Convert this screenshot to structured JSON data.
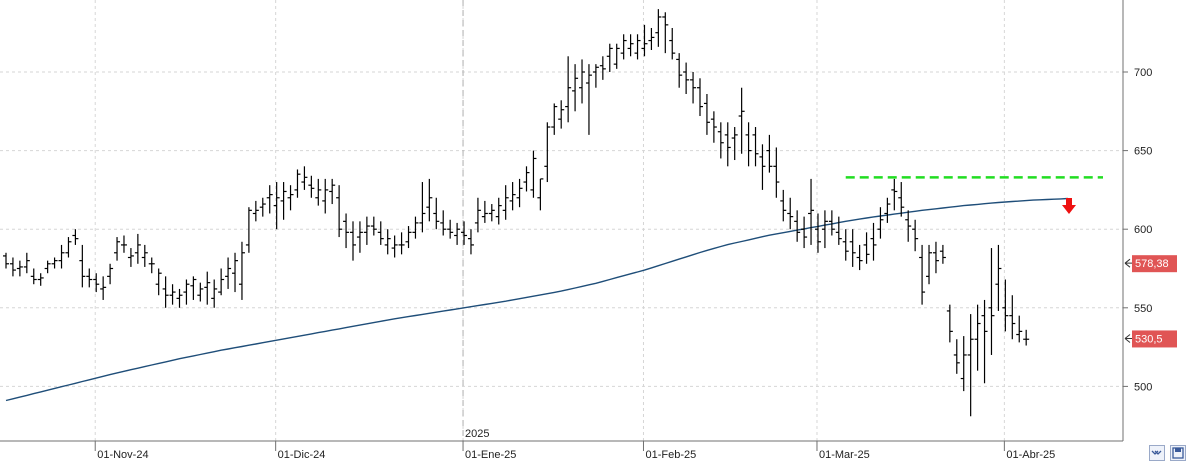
{
  "chart_data": {
    "type": "ohlc",
    "year_label": "2025",
    "x_tick_labels": [
      "01-Nov-24",
      "01-Dic-24",
      "01-Ene-25",
      "01-Feb-25",
      "01-Mar-25",
      "01-Abr-25"
    ],
    "y_ticks": [
      500,
      550,
      600,
      650,
      700
    ],
    "ylim": [
      470,
      750
    ],
    "grid": true,
    "series": [
      {
        "type": "ohlc",
        "bars": [
          [
            583,
            585,
            575,
            578
          ],
          [
            578,
            582,
            570,
            574
          ],
          [
            575,
            580,
            570,
            576
          ],
          [
            576,
            585,
            572,
            580
          ],
          [
            570,
            575,
            565,
            568
          ],
          [
            568,
            572,
            564,
            569
          ],
          [
            575,
            580,
            572,
            578
          ],
          [
            578,
            582,
            575,
            580
          ],
          [
            580,
            590,
            575,
            585
          ],
          [
            585,
            595,
            582,
            592
          ],
          [
            596,
            600,
            590,
            594
          ],
          [
            580,
            590,
            563,
            570
          ],
          [
            570,
            575,
            563,
            568
          ],
          [
            568,
            572,
            560,
            565
          ],
          [
            562,
            570,
            555,
            563
          ],
          [
            570,
            578,
            565,
            575
          ],
          [
            585,
            595,
            580,
            592
          ],
          [
            590,
            596,
            585,
            590
          ],
          [
            582,
            588,
            576,
            583
          ],
          [
            585,
            597,
            578,
            590
          ],
          [
            582,
            590,
            576,
            585
          ],
          [
            578,
            582,
            572,
            578
          ],
          [
            565,
            575,
            558,
            572
          ],
          [
            562,
            570,
            550,
            558
          ],
          [
            558,
            565,
            552,
            560
          ],
          [
            556,
            562,
            550,
            558
          ],
          [
            560,
            568,
            552,
            565
          ],
          [
            564,
            570,
            555,
            568
          ],
          [
            558,
            566,
            554,
            562
          ],
          [
            563,
            573,
            552,
            566
          ],
          [
            556,
            568,
            550,
            562
          ],
          [
            560,
            575,
            558,
            568
          ],
          [
            570,
            582,
            562,
            575
          ],
          [
            572,
            585,
            560,
            580
          ],
          [
            565,
            592,
            555,
            585
          ],
          [
            590,
            614,
            585,
            612
          ],
          [
            610,
            618,
            605,
            612
          ],
          [
            614,
            620,
            608,
            616
          ],
          [
            620,
            628,
            610,
            622
          ],
          [
            615,
            630,
            600,
            620
          ],
          [
            618,
            630,
            606,
            624
          ],
          [
            620,
            628,
            612,
            622
          ],
          [
            625,
            638,
            620,
            635
          ],
          [
            630,
            640,
            625,
            633
          ],
          [
            628,
            634,
            620,
            626
          ],
          [
            620,
            632,
            615,
            625
          ],
          [
            618,
            632,
            610,
            625
          ],
          [
            624,
            632,
            616,
            628
          ],
          [
            620,
            628,
            595,
            600
          ],
          [
            605,
            610,
            588,
            598
          ],
          [
            598,
            605,
            580,
            590
          ],
          [
            595,
            605,
            585,
            598
          ],
          [
            598,
            608,
            590,
            602
          ],
          [
            602,
            608,
            596,
            600
          ],
          [
            598,
            605,
            590,
            594
          ],
          [
            590,
            600,
            584,
            594
          ],
          [
            588,
            596,
            582,
            590
          ],
          [
            590,
            598,
            584,
            590
          ],
          [
            592,
            602,
            588,
            598
          ],
          [
            598,
            608,
            594,
            604
          ],
          [
            604,
            630,
            598,
            610
          ],
          [
            614,
            632,
            605,
            620
          ],
          [
            610,
            620,
            600,
            605
          ],
          [
            604,
            612,
            596,
            600
          ],
          [
            600,
            606,
            594,
            598
          ],
          [
            596,
            604,
            590,
            600
          ],
          [
            598,
            605,
            590,
            596
          ],
          [
            594,
            600,
            584,
            590
          ],
          [
            604,
            620,
            598,
            612
          ],
          [
            608,
            618,
            604,
            610
          ],
          [
            610,
            616,
            605,
            612
          ],
          [
            608,
            620,
            603,
            615
          ],
          [
            612,
            628,
            606,
            620
          ],
          [
            618,
            630,
            612,
            622
          ],
          [
            620,
            632,
            614,
            626
          ],
          [
            630,
            640,
            624,
            636
          ],
          [
            625,
            650,
            620,
            645
          ],
          [
            620,
            632,
            612,
            632
          ],
          [
            640,
            668,
            630,
            665
          ],
          [
            665,
            680,
            660,
            678
          ],
          [
            670,
            682,
            664,
            676
          ],
          [
            678,
            710,
            668,
            690
          ],
          [
            688,
            705,
            675,
            696
          ],
          [
            690,
            708,
            680,
            700
          ],
          [
            693,
            705,
            660,
            698
          ],
          [
            700,
            705,
            690,
            703
          ],
          [
            704,
            710,
            695,
            702
          ],
          [
            710,
            718,
            700,
            715
          ],
          [
            705,
            718,
            702,
            715
          ],
          [
            712,
            724,
            708,
            720
          ],
          [
            715,
            724,
            710,
            718
          ],
          [
            712,
            724,
            708,
            720
          ],
          [
            715,
            730,
            710,
            718
          ],
          [
            720,
            728,
            714,
            722
          ],
          [
            725,
            740,
            716,
            735
          ],
          [
            735,
            738,
            712,
            730
          ],
          [
            720,
            728,
            708,
            712
          ],
          [
            708,
            712,
            690,
            698
          ],
          [
            700,
            706,
            686,
            695
          ],
          [
            695,
            700,
            680,
            690
          ],
          [
            690,
            696,
            672,
            678
          ],
          [
            680,
            686,
            660,
            668
          ],
          [
            670,
            675,
            655,
            665
          ],
          [
            662,
            668,
            645,
            655
          ],
          [
            660,
            668,
            640,
            652
          ],
          [
            658,
            665,
            644,
            660
          ],
          [
            672,
            690,
            648,
            675
          ],
          [
            660,
            668,
            640,
            650
          ],
          [
            660,
            665,
            640,
            648
          ],
          [
            646,
            654,
            625,
            640
          ],
          [
            650,
            660,
            636,
            640
          ],
          [
            640,
            652,
            620,
            630
          ],
          [
            618,
            625,
            605,
            612
          ],
          [
            610,
            620,
            600,
            608
          ],
          [
            605,
            612,
            592,
            598
          ],
          [
            600,
            608,
            588,
            595
          ],
          [
            610,
            632,
            590,
            612
          ],
          [
            600,
            610,
            585,
            592
          ],
          [
            600,
            612,
            588,
            605
          ],
          [
            605,
            612,
            596,
            600
          ],
          [
            598,
            608,
            590,
            594
          ],
          [
            592,
            600,
            580,
            586
          ],
          [
            592,
            600,
            576,
            585
          ],
          [
            582,
            590,
            574,
            580
          ],
          [
            590,
            598,
            578,
            584
          ],
          [
            594,
            604,
            580,
            590
          ],
          [
            600,
            614,
            594,
            606
          ],
          [
            610,
            620,
            604,
            616
          ],
          [
            625,
            632,
            612,
            624
          ],
          [
            620,
            630,
            608,
            614
          ],
          [
            606,
            612,
            592,
            602
          ],
          [
            600,
            606,
            586,
            594
          ],
          [
            582,
            590,
            552,
            560
          ],
          [
            570,
            590,
            565,
            585
          ],
          [
            585,
            592,
            572,
            580
          ],
          [
            586,
            590,
            578,
            582
          ],
          [
            548,
            552,
            528,
            535
          ],
          [
            520,
            530,
            508,
            515
          ],
          [
            505,
            532,
            497,
            520
          ],
          [
            520,
            546,
            481,
            530
          ],
          [
            530,
            552,
            510,
            540
          ],
          [
            545,
            555,
            502,
            535
          ],
          [
            550,
            588,
            520,
            545
          ],
          [
            565,
            590,
            548,
            575
          ],
          [
            550,
            568,
            535,
            545
          ],
          [
            545,
            558,
            530,
            540
          ],
          [
            533,
            545,
            528,
            535
          ],
          [
            530,
            536,
            526,
            530
          ]
        ]
      },
      {
        "type": "line",
        "name": "",
        "color": "#1f4e79",
        "values": [
          491.0,
          492.1,
          493.2,
          494.3,
          495.4,
          496.5,
          497.6,
          498.7,
          499.8,
          500.9,
          502.0,
          503.1,
          504.2,
          505.3,
          506.4,
          507.5,
          508.6,
          509.6,
          510.6,
          511.6,
          512.6,
          513.6,
          514.6,
          515.6,
          516.6,
          517.6,
          518.5,
          519.4,
          520.3,
          521.2,
          522.1,
          523.0,
          523.8,
          524.6,
          525.4,
          526.2,
          527.0,
          527.8,
          528.6,
          529.4,
          530.2,
          531.0,
          531.8,
          532.6,
          533.4,
          534.2,
          535.0,
          535.8,
          536.6,
          537.4,
          538.2,
          539.0,
          539.8,
          540.6,
          541.4,
          542.2,
          543.0,
          543.7,
          544.4,
          545.1,
          545.8,
          546.5,
          547.2,
          547.9,
          548.6,
          549.3,
          550.0,
          550.7,
          551.4,
          552.1,
          552.8,
          553.5,
          554.2,
          555.0,
          555.8,
          556.6,
          557.4,
          558.2,
          559.0,
          559.8,
          560.6,
          561.6,
          562.6,
          563.6,
          564.6,
          565.6,
          566.8,
          568.0,
          569.2,
          570.4,
          571.6,
          572.8,
          574.0,
          575.4,
          576.8,
          578.2,
          579.6,
          581.0,
          582.4,
          583.8,
          585.2,
          586.5,
          587.8,
          589.0,
          590.2,
          591.2,
          592.2,
          593.2,
          594.2,
          595.2,
          596.2,
          597.0,
          597.8,
          598.6,
          599.4,
          600.2,
          601.0,
          601.8,
          602.6,
          603.4,
          604.2,
          605.0,
          605.7,
          606.4,
          607.1,
          607.8,
          608.4,
          609.0,
          609.6,
          610.2,
          610.8,
          611.4,
          612.0,
          612.5,
          613.0,
          613.5,
          614.0,
          614.5,
          615.0,
          615.4,
          615.8,
          616.2,
          616.6,
          617.0,
          617.3,
          617.6,
          617.9,
          618.2,
          618.5,
          618.7,
          618.9,
          619.1,
          619.3,
          619.5
        ]
      }
    ],
    "resistance_level": {
      "value": 633,
      "color": "#22dd22"
    },
    "price_tags": [
      {
        "label": "578,38",
        "value": 578.38,
        "color": "#e05555"
      },
      {
        "label": "530,5",
        "value": 530.5,
        "color": "#e05555"
      }
    ],
    "annotation_arrow": {
      "color": "#ee1111",
      "direction": "down"
    }
  },
  "ui": {
    "collapse_icon": "double-chevron-icon",
    "save_icon": "save-icon"
  }
}
